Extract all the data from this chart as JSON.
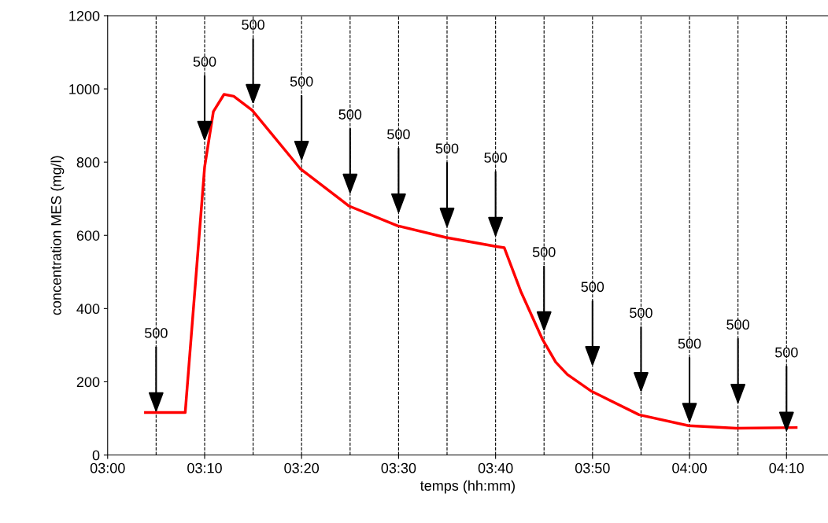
{
  "chart_data": {
    "type": "line",
    "xlabel": "temps (hh:mm)",
    "ylabel": "concentration MES (mg/l)",
    "series": [
      {
        "color": "#ff0000",
        "x": [
          3.065,
          3.1333,
          3.1667,
          3.1817,
          3.2,
          3.2167,
          3.2483,
          3.3317,
          3.415,
          3.4983,
          3.5817,
          3.6667,
          3.6817,
          3.71,
          3.7467,
          3.77,
          3.79,
          3.8317,
          3.9133,
          3.9983,
          4.08,
          4.1833
        ],
        "values": [
          116,
          116,
          787,
          938,
          985,
          980,
          942,
          781,
          680,
          626,
          594,
          570,
          566,
          447,
          318,
          254,
          220,
          174,
          110,
          80,
          73,
          75
        ]
      }
    ],
    "xlim": [
      3.0,
      4.238
    ],
    "ylim": [
      0,
      1200
    ],
    "xticks": [
      {
        "value": 3.0,
        "label": "03:00"
      },
      {
        "value": 3.1667,
        "label": "03:10"
      },
      {
        "value": 3.3333,
        "label": "03:20"
      },
      {
        "value": 3.5,
        "label": "03:30"
      },
      {
        "value": 3.6667,
        "label": "03:40"
      },
      {
        "value": 3.8333,
        "label": "03:50"
      },
      {
        "value": 4.0,
        "label": "04:00"
      },
      {
        "value": 4.1667,
        "label": "04:10"
      }
    ],
    "yticks": [
      0,
      200,
      400,
      600,
      800,
      1000,
      1200
    ],
    "ref_lines": [
      {
        "axis": "x",
        "value": 3.0833,
        "line_style": "dashed",
        "color": "#000000"
      },
      {
        "axis": "x",
        "value": 3.1667,
        "line_style": "dashed",
        "color": "#000000"
      },
      {
        "axis": "x",
        "value": 3.25,
        "line_style": "dashed",
        "color": "#000000"
      },
      {
        "axis": "x",
        "value": 3.3333,
        "line_style": "dashed",
        "color": "#000000"
      },
      {
        "axis": "x",
        "value": 3.4167,
        "line_style": "dashed",
        "color": "#000000"
      },
      {
        "axis": "x",
        "value": 3.5,
        "line_style": "dashed",
        "color": "#000000"
      },
      {
        "axis": "x",
        "value": 3.5833,
        "line_style": "dashed",
        "color": "#000000"
      },
      {
        "axis": "x",
        "value": 3.6667,
        "line_style": "dashed",
        "color": "#000000"
      },
      {
        "axis": "x",
        "value": 3.75,
        "line_style": "dashed",
        "color": "#000000"
      },
      {
        "axis": "x",
        "value": 3.8333,
        "line_style": "dashed",
        "color": "#000000"
      },
      {
        "axis": "x",
        "value": 3.9167,
        "line_style": "dashed",
        "color": "#000000"
      },
      {
        "axis": "x",
        "value": 4.0,
        "line_style": "dashed",
        "color": "#000000"
      },
      {
        "axis": "x",
        "value": 4.0833,
        "line_style": "dashed",
        "color": "#000000"
      },
      {
        "axis": "x",
        "value": 4.1667,
        "line_style": "dashed",
        "color": "#000000"
      }
    ],
    "annotations": [
      {
        "text": "500",
        "x": 3.0833,
        "y": 330
      },
      {
        "text": "500",
        "x": 3.1667,
        "y": 1071
      },
      {
        "text": "500",
        "x": 3.25,
        "y": 1172
      },
      {
        "text": "500",
        "x": 3.3333,
        "y": 1017
      },
      {
        "text": "500",
        "x": 3.4167,
        "y": 927
      },
      {
        "text": "500",
        "x": 3.5,
        "y": 873
      },
      {
        "text": "500",
        "x": 3.5833,
        "y": 834
      },
      {
        "text": "500",
        "x": 3.6667,
        "y": 809
      },
      {
        "text": "500",
        "x": 3.75,
        "y": 551
      },
      {
        "text": "500",
        "x": 3.8333,
        "y": 456
      },
      {
        "text": "500",
        "x": 3.9167,
        "y": 385
      },
      {
        "text": "500",
        "x": 4.0,
        "y": 301
      },
      {
        "text": "500",
        "x": 4.0833,
        "y": 353
      },
      {
        "text": "500",
        "x": 4.1667,
        "y": 277
      }
    ],
    "grid": false,
    "legend": false,
    "marker": "none",
    "line_style": "solid"
  }
}
